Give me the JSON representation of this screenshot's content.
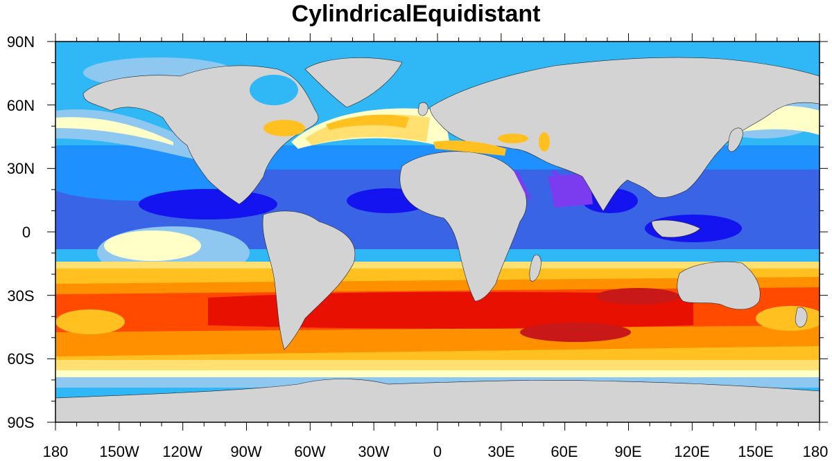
{
  "title": "CylindricalEquidistant",
  "lat_labels": [
    "90N",
    "60N",
    "30N",
    "0",
    "30S",
    "60S",
    "90S"
  ],
  "lon_labels": [
    "180",
    "150W",
    "120W",
    "90W",
    "60W",
    "30W",
    "0",
    "30E",
    "60E",
    "90E",
    "120E",
    "150E",
    "180"
  ],
  "colors": {
    "land": "#d3d3d3",
    "ocean_light_blue": "#8ec8f0",
    "ocean_sky": "#2fb8f5",
    "ocean_mid": "#1e90ff",
    "ocean_royal": "#3a64e6",
    "ocean_deep": "#1414f0",
    "ocean_violet": "#7b3cf0",
    "pale_yellow": "#ffffc8",
    "yellow": "#ffe070",
    "gold": "#ffc020",
    "orange": "#ff9000",
    "red_orange": "#ff4a00",
    "red": "#e81000",
    "dark_red": "#c81818"
  }
}
